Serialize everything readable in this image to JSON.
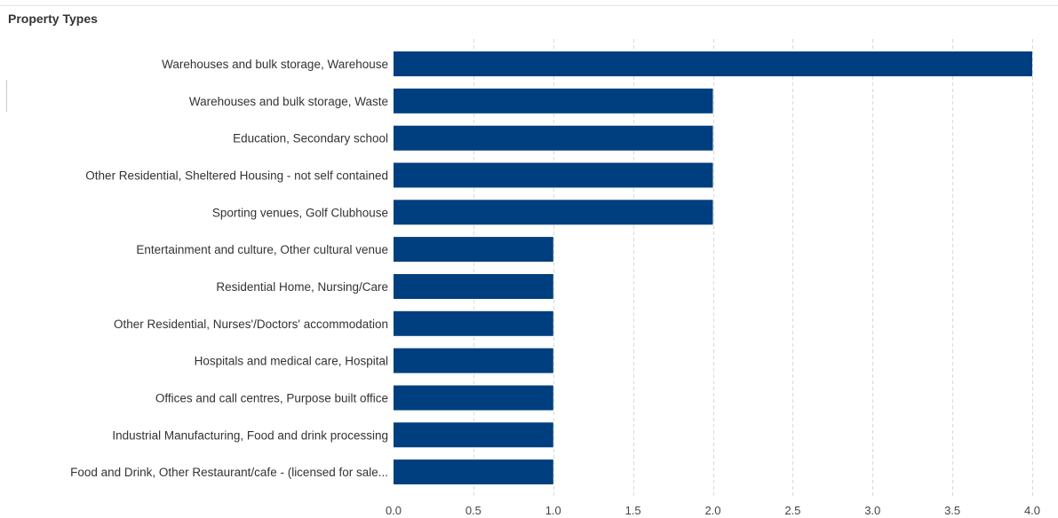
{
  "panel": {
    "title": "Property Types"
  },
  "chart_data": {
    "type": "bar",
    "orientation": "horizontal",
    "title": "Property Types",
    "xlabel": "",
    "ylabel": "",
    "xlim": [
      0,
      4
    ],
    "x_ticks": [
      "0.0",
      "0.5",
      "1.0",
      "1.5",
      "2.0",
      "2.5",
      "3.0",
      "3.5",
      "4.0"
    ],
    "grid": true,
    "bar_color": "#003f7f",
    "categories": [
      "Warehouses and bulk storage, Warehouse",
      "Warehouses and bulk storage, Waste",
      "Education, Secondary school",
      "Other Residential, Sheltered Housing - not self contained",
      "Sporting venues, Golf Clubhouse",
      "Entertainment and culture, Other cultural venue",
      "Residential Home, Nursing/Care",
      "Other Residential, Nurses'/Doctors' accommodation",
      "Hospitals and medical care, Hospital",
      "Offices and call centres, Purpose built office",
      "Industrial Manufacturing, Food and drink processing",
      "Food and Drink, Other Restaurant/cafe - (licensed for sale..."
    ],
    "values": [
      4,
      2,
      2,
      2,
      2,
      1,
      1,
      1,
      1,
      1,
      1,
      1
    ]
  }
}
